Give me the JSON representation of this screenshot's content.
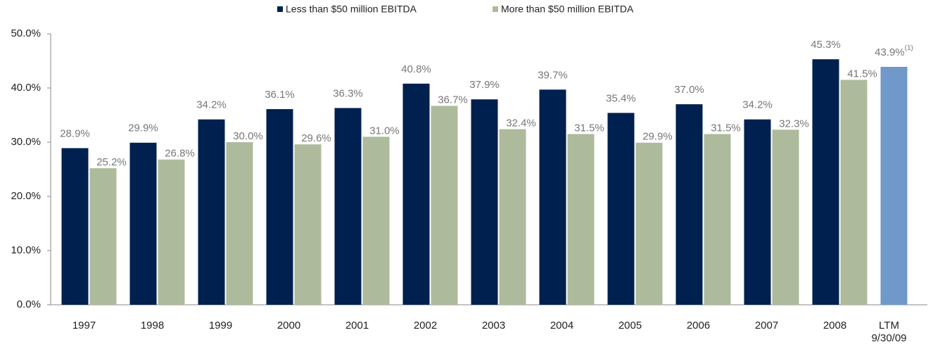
{
  "chart_data": {
    "type": "bar",
    "categories": [
      "1997",
      "1998",
      "1999",
      "2000",
      "2001",
      "2002",
      "2003",
      "2004",
      "2005",
      "2006",
      "2007",
      "2008",
      "LTM 9/30/09"
    ],
    "series": [
      {
        "name": "Less than $50 million EBITDA",
        "color": "#00204f",
        "values": [
          28.9,
          29.9,
          34.2,
          36.1,
          36.3,
          40.8,
          37.9,
          39.7,
          35.4,
          37.0,
          34.2,
          45.3,
          null
        ],
        "value_labels": [
          "28.9%",
          "29.9%",
          "34.2%",
          "36.1%",
          "36.3%",
          "40.8%",
          "37.9%",
          "39.7%",
          "35.4%",
          "37.0%",
          "34.2%",
          "45.3%",
          null
        ]
      },
      {
        "name": "More than $50 million EBITDA",
        "color": "#adbb9c",
        "values": [
          25.2,
          26.8,
          30.0,
          29.6,
          31.0,
          36.7,
          32.4,
          31.5,
          29.9,
          31.5,
          32.3,
          41.5,
          null
        ],
        "value_labels": [
          "25.2%",
          "26.8%",
          "30.0%",
          "29.6%",
          "31.0%",
          "36.7%",
          "32.4%",
          "31.5%",
          "29.9%",
          "31.5%",
          "32.3%",
          "41.5%",
          null
        ]
      },
      {
        "color": "#7098c8",
        "values": [
          null,
          null,
          null,
          null,
          null,
          null,
          null,
          null,
          null,
          null,
          null,
          null,
          43.9
        ],
        "value_labels": [
          null,
          null,
          null,
          null,
          null,
          null,
          null,
          null,
          null,
          null,
          null,
          null,
          "43.9%"
        ],
        "note": "(1)"
      }
    ],
    "ylim": [
      0,
      50
    ],
    "yticks": [
      {
        "value": 0,
        "label": "0.0%"
      },
      {
        "value": 10,
        "label": "10.0%"
      },
      {
        "value": 20,
        "label": "20.0%"
      },
      {
        "value": 30,
        "label": "30.0%"
      },
      {
        "value": 40,
        "label": "40.0%"
      },
      {
        "value": 50,
        "label": "50.0%"
      }
    ],
    "grid": false,
    "legend": "top"
  }
}
